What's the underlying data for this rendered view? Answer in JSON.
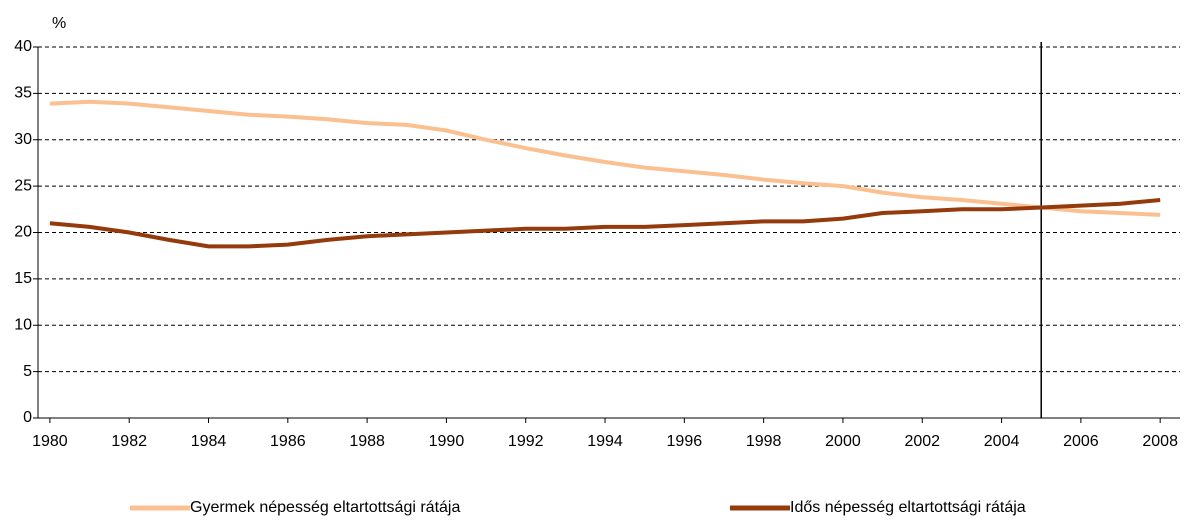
{
  "chart_data": {
    "type": "line",
    "y_label": "%",
    "x": [
      1980,
      1981,
      1982,
      1983,
      1984,
      1985,
      1986,
      1987,
      1988,
      1989,
      1990,
      1991,
      1992,
      1993,
      1994,
      1995,
      1996,
      1997,
      1998,
      1999,
      2000,
      2001,
      2002,
      2003,
      2004,
      2005,
      2006,
      2007,
      2008
    ],
    "series": [
      {
        "name": "Gyermek népesség eltartottsági rátája",
        "color": "#fac090",
        "values": [
          33.9,
          34.1,
          33.9,
          33.5,
          33.1,
          32.7,
          32.5,
          32.2,
          31.8,
          31.6,
          31.0,
          30.0,
          29.1,
          28.3,
          27.6,
          27.0,
          26.6,
          26.2,
          25.7,
          25.3,
          25.0,
          24.3,
          23.8,
          23.5,
          23.1,
          22.7,
          22.3,
          22.1,
          21.9
        ]
      },
      {
        "name": "Idős népesség eltartottsági rátája",
        "color": "#953a0c",
        "values": [
          21.0,
          20.6,
          20.0,
          19.2,
          18.5,
          18.5,
          18.7,
          19.2,
          19.6,
          19.8,
          20.0,
          20.2,
          20.4,
          20.4,
          20.6,
          20.6,
          20.8,
          21.0,
          21.2,
          21.2,
          21.5,
          22.1,
          22.3,
          22.5,
          22.5,
          22.7,
          22.9,
          23.1,
          23.5
        ]
      }
    ],
    "xlim": [
      1979.7,
      2008.5
    ],
    "xticks": [
      1980,
      1982,
      1984,
      1986,
      1988,
      1990,
      1992,
      1994,
      1996,
      1998,
      2000,
      2002,
      2004,
      2006,
      2008
    ],
    "ylim": [
      0,
      40
    ],
    "yticks": [
      0,
      5,
      10,
      15,
      20,
      25,
      30,
      35,
      40
    ],
    "grid": true,
    "vline": 2005
  }
}
